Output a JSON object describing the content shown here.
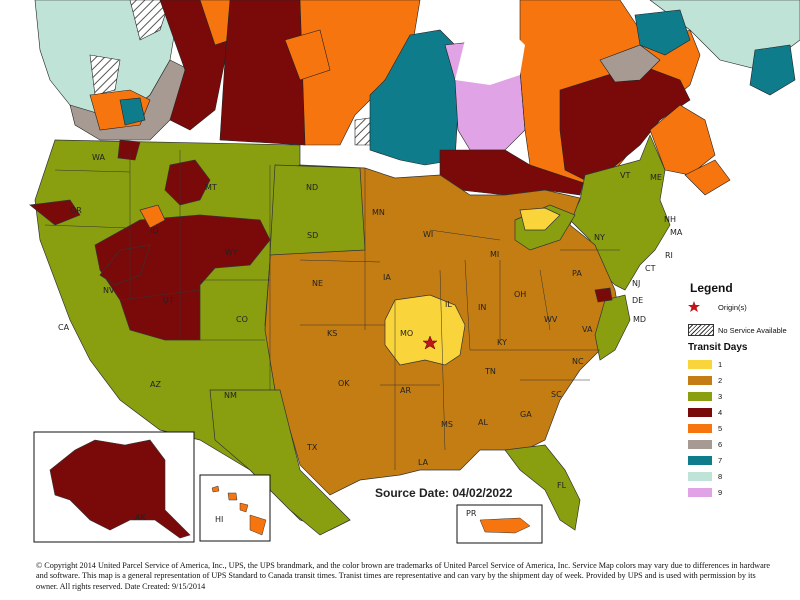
{
  "map": {
    "source_date": "Source Date: 04/02/2022",
    "state_labels": [
      "WA",
      "OR",
      "ID",
      "MT",
      "WY",
      "NV",
      "UT",
      "CO",
      "CA",
      "AZ",
      "NM",
      "ND",
      "SD",
      "NE",
      "KS",
      "OK",
      "TX",
      "MN",
      "IA",
      "MO",
      "AR",
      "LA",
      "WI",
      "IL",
      "MI",
      "IN",
      "OH",
      "KY",
      "TN",
      "MS",
      "AL",
      "GA",
      "FL",
      "SC",
      "NC",
      "VA",
      "WV",
      "PA",
      "NY",
      "VT",
      "NH",
      "ME",
      "MA",
      "CT",
      "RI",
      "NJ",
      "DE",
      "MD",
      "AK",
      "HI",
      "PR"
    ],
    "origin_name": "Origin(s)"
  },
  "legend": {
    "title": "Legend",
    "origin_label": "Origin(s)",
    "no_service_label": "No Service Available",
    "transit_title": "Transit Days",
    "transit_days": [
      {
        "day": "1",
        "color": "#f9d43b"
      },
      {
        "day": "2",
        "color": "#c47d12"
      },
      {
        "day": "3",
        "color": "#8a9f10"
      },
      {
        "day": "4",
        "color": "#7a0a0a"
      },
      {
        "day": "5",
        "color": "#f7750e"
      },
      {
        "day": "6",
        "color": "#a69a93"
      },
      {
        "day": "7",
        "color": "#0f7c8c"
      },
      {
        "day": "8",
        "color": "#bfe3d7"
      },
      {
        "day": "9",
        "color": "#e0a3e6"
      }
    ]
  },
  "footer": {
    "copyright": "© Copyright 2014 United Parcel Service of America, Inc., UPS, the UPS brandmark, and the color brown are trademarks of United Parcel Service of America, Inc.  Service Map colors may vary due to differences in hardware and software. This map is a general representation of UPS Standard to Canada transit times. Tranist times are representative and can vary by the shipment day of week. Provided by UPS and is used with permission by its owner. All rights reserved. Date Created: 9/15/2014"
  }
}
